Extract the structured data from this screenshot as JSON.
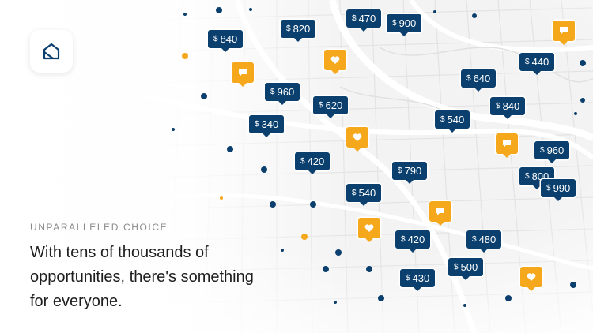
{
  "colors": {
    "navy": "#0a3f6e",
    "accent": "#f5a81c",
    "text": "#1e1e1e",
    "muted": "#8a8a8a"
  },
  "app": {
    "logo_icon": "house-logo-icon"
  },
  "copy": {
    "eyebrow": "UNPARALLELED CHOICE",
    "headline": "With tens of thousands of opportunities, there's something for everyone."
  },
  "map": {
    "currency": "$",
    "price_pins": [
      "840",
      "820",
      "470",
      "900",
      "960",
      "620",
      "340",
      "640",
      "440",
      "840",
      "540",
      "420",
      "790",
      "960",
      "800",
      "990",
      "540",
      "420",
      "480",
      "500",
      "430"
    ],
    "yellow_pins": [
      "chat-bubble-icon",
      "heart-icon",
      "chat-bubble-icon",
      "heart-icon",
      "chat-bubble-icon",
      "chat-bubble-icon",
      "heart-icon",
      "heart-icon"
    ]
  }
}
